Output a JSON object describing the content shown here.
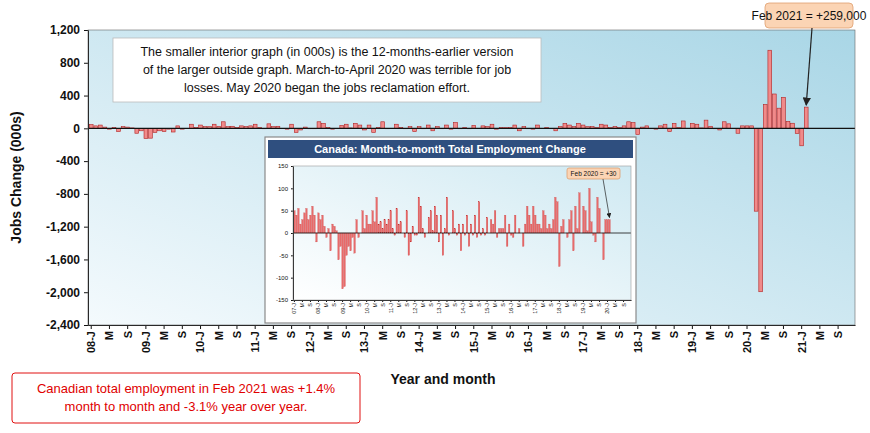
{
  "chart_data": [
    {
      "type": "bar",
      "y_label": "Jobs Change (000s)",
      "x_label": "Year and month",
      "note_lines": [
        "The smaller interior graph (in 000s) is the 12-months-earlier version",
        "of the larger outside graph. March-to-April 2020 was terrible for job",
        "losses. May 2020 began the jobs reclamation effort."
      ],
      "callout": "Feb 2021 = +259,000",
      "footnote_lines": [
        "Canadian total employment in Feb 2021 was +1.4%",
        "month to month and -3.1% year over year."
      ],
      "categories": [
        "08-J",
        null,
        null,
        null,
        "M",
        null,
        null,
        null,
        "S",
        null,
        null,
        null,
        "09-J",
        null,
        null,
        null,
        "M",
        null,
        null,
        null,
        "S",
        null,
        null,
        null,
        "10-J",
        null,
        null,
        null,
        "M",
        null,
        null,
        null,
        "S",
        null,
        null,
        null,
        "11-J",
        null,
        null,
        null,
        "M",
        null,
        null,
        null,
        "S",
        null,
        null,
        null,
        "12-J",
        null,
        null,
        null,
        "M",
        null,
        null,
        null,
        "S",
        null,
        null,
        null,
        "13-J",
        null,
        null,
        null,
        "M",
        null,
        null,
        null,
        "S",
        null,
        null,
        null,
        "14-J",
        null,
        null,
        null,
        "M",
        null,
        null,
        null,
        "S",
        null,
        null,
        null,
        "15-J",
        null,
        null,
        null,
        "M",
        null,
        null,
        null,
        "S",
        null,
        null,
        null,
        "16-J",
        null,
        null,
        null,
        "M",
        null,
        null,
        null,
        "S",
        null,
        null,
        null,
        "17-J",
        null,
        null,
        null,
        "M",
        null,
        null,
        null,
        "S",
        null,
        null,
        null,
        "18-J",
        null,
        null,
        null,
        "M",
        null,
        null,
        null,
        "S",
        null,
        null,
        null,
        "19-J",
        null,
        null,
        null,
        "M",
        null,
        null,
        null,
        "S",
        null,
        null,
        null,
        "20-J",
        null,
        null,
        null,
        "M",
        null,
        null,
        null,
        "S",
        null,
        null,
        null,
        "21-J",
        null,
        null,
        null,
        "M",
        null,
        null,
        null,
        "S",
        null,
        null,
        null
      ],
      "values": [
        45,
        30,
        40,
        15,
        -10,
        10,
        -40,
        20,
        15,
        5,
        -60,
        -30,
        -125,
        -120,
        -50,
        -30,
        -40,
        -10,
        -45,
        30,
        -10,
        0,
        50,
        10,
        40,
        20,
        20,
        50,
        25,
        80,
        20,
        25,
        10,
        30,
        20,
        30,
        50,
        10,
        -5,
        55,
        20,
        25,
        0,
        -10,
        50,
        -50,
        -20,
        15,
        -5,
        -5,
        80,
        60,
        10,
        -10,
        0,
        35,
        50,
        5,
        60,
        40,
        -20,
        40,
        -50,
        10,
        80,
        -5,
        0,
        50,
        10,
        -5,
        20,
        -40,
        20,
        -5,
        40,
        -30,
        20,
        -5,
        40,
        -10,
        70,
        -5,
        10,
        -5,
        35,
        0,
        30,
        20,
        50,
        -10,
        10,
        10,
        10,
        40,
        -30,
        20,
        -5,
        -10,
        40,
        0,
        10,
        0,
        -30,
        20,
        60,
        40,
        20,
        60,
        40,
        20,
        20,
        10,
        50,
        40,
        10,
        20,
        10,
        30,
        80,
        70,
        -75,
        15,
        30,
        0,
        -10,
        30,
        50,
        -40,
        60,
        10,
        90,
        0,
        60,
        50,
        5,
        100,
        25,
        -5,
        -20,
        80,
        55,
        0,
        -60,
        30,
        30,
        30,
        -1011,
        -1994,
        290,
        953,
        419,
        246,
        378,
        84,
        62,
        -63,
        -213,
        259,
        null,
        null,
        null,
        null,
        null,
        null,
        null,
        null,
        null,
        null
      ],
      "color": "#f08a8a",
      "ylim": [
        -2400,
        1200
      ],
      "yticks": [
        {
          "value": 1200,
          "label": "1,200"
        },
        800,
        400,
        0,
        -400,
        -800,
        {
          "value": -1200,
          "label": "-1,200"
        },
        {
          "value": -1600,
          "label": "-1,600"
        },
        {
          "value": -2000,
          "label": "-2,000"
        },
        {
          "value": -2400,
          "label": "-2,400"
        }
      ],
      "grid": false
    },
    {
      "type": "bar",
      "title": "Canada: Month-to-month Total Employment Change",
      "callout": "Feb 2020 = +30",
      "categories": [
        "07-J",
        null,
        null,
        null,
        "M",
        null,
        null,
        null,
        "S",
        null,
        null,
        null,
        "08-J",
        null,
        null,
        null,
        "M",
        null,
        null,
        null,
        "S",
        null,
        null,
        null,
        "09-J",
        null,
        null,
        null,
        "M",
        null,
        null,
        null,
        "S",
        null,
        null,
        null,
        "10-J",
        null,
        null,
        null,
        "M",
        null,
        null,
        null,
        "S",
        null,
        null,
        null,
        "11-J",
        null,
        null,
        null,
        "M",
        null,
        null,
        null,
        "S",
        null,
        null,
        null,
        "12-J",
        null,
        null,
        null,
        "M",
        null,
        null,
        null,
        "S",
        null,
        null,
        null,
        "13-J",
        null,
        null,
        null,
        "M",
        null,
        null,
        null,
        "S",
        null,
        null,
        null,
        "14-J",
        null,
        null,
        null,
        "M",
        null,
        null,
        null,
        "S",
        null,
        null,
        null,
        "15-J",
        null,
        null,
        null,
        "M",
        null,
        null,
        null,
        "S",
        null,
        null,
        null,
        "16-J",
        null,
        null,
        null,
        "M",
        null,
        null,
        null,
        "S",
        null,
        null,
        null,
        "17-J",
        null,
        null,
        null,
        "M",
        null,
        null,
        null,
        "S",
        null,
        null,
        null,
        "18-J",
        null,
        null,
        null,
        "M",
        null,
        null,
        null,
        "S",
        null,
        null,
        null,
        "19-J",
        null,
        null,
        null,
        "M",
        null,
        null,
        null,
        "S",
        null,
        null,
        null,
        "20-J",
        null,
        null,
        null,
        "M",
        null,
        null,
        null,
        "S",
        null,
        null,
        null
      ],
      "values": [
        50,
        40,
        55,
        20,
        30,
        45,
        55,
        30,
        40,
        60,
        40,
        -20,
        45,
        30,
        40,
        15,
        -10,
        10,
        -40,
        20,
        15,
        5,
        -60,
        -30,
        -125,
        -120,
        -50,
        -30,
        -40,
        -10,
        -45,
        30,
        -10,
        0,
        50,
        10,
        40,
        20,
        20,
        50,
        25,
        80,
        20,
        25,
        10,
        30,
        20,
        30,
        50,
        10,
        -5,
        55,
        20,
        25,
        0,
        -10,
        50,
        -50,
        -20,
        15,
        -5,
        -5,
        80,
        60,
        10,
        -10,
        0,
        35,
        50,
        5,
        60,
        40,
        -20,
        40,
        -50,
        10,
        80,
        -5,
        0,
        50,
        10,
        -5,
        20,
        -40,
        20,
        -5,
        40,
        -30,
        20,
        -5,
        40,
        -10,
        70,
        -5,
        10,
        -5,
        35,
        0,
        30,
        20,
        50,
        -10,
        10,
        10,
        10,
        40,
        -30,
        20,
        -5,
        -10,
        40,
        0,
        10,
        0,
        -30,
        20,
        60,
        40,
        20,
        60,
        40,
        20,
        20,
        10,
        50,
        40,
        10,
        20,
        10,
        30,
        80,
        70,
        -75,
        15,
        30,
        0,
        -10,
        30,
        50,
        -40,
        60,
        10,
        90,
        0,
        60,
        50,
        5,
        100,
        25,
        -5,
        -20,
        80,
        55,
        0,
        -60,
        30,
        30,
        30,
        null,
        null,
        null,
        null,
        null,
        null,
        null,
        null,
        null,
        null
      ],
      "color": "#e86a6a",
      "ylim": [
        -150,
        150
      ],
      "yticks": [
        -150,
        -100,
        -50,
        0,
        50,
        100,
        150
      ],
      "grid": false
    }
  ]
}
